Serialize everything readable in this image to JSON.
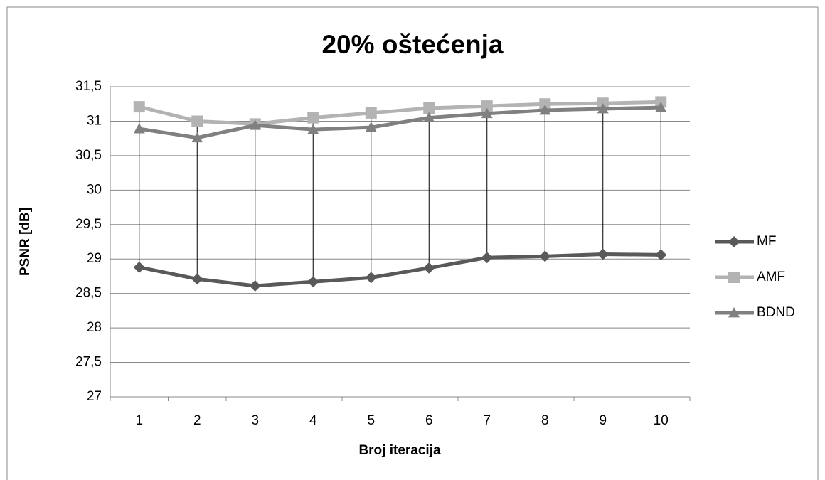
{
  "chart_data": {
    "type": "line",
    "title": "20% oštećenja",
    "x_label": "Broj iteracija",
    "y_label": "PSNR [dB]",
    "categories": [
      1,
      2,
      3,
      4,
      5,
      6,
      7,
      8,
      9,
      10
    ],
    "series": [
      {
        "name": "MF",
        "color": "#595959",
        "marker": "diamond",
        "values": [
          28.88,
          28.71,
          28.61,
          28.67,
          28.73,
          28.87,
          29.02,
          29.04,
          29.07,
          29.06
        ]
      },
      {
        "name": "AMF",
        "color": "#b3b3b3",
        "marker": "square",
        "values": [
          31.21,
          31.0,
          30.96,
          31.05,
          31.12,
          31.19,
          31.22,
          31.25,
          31.26,
          31.28
        ]
      },
      {
        "name": "BDND",
        "color": "#808080",
        "marker": "triangle",
        "values": [
          30.89,
          30.76,
          30.94,
          30.88,
          30.91,
          31.05,
          31.11,
          31.16,
          31.18,
          31.2
        ]
      }
    ],
    "ylim": [
      27,
      31.5
    ],
    "yticks": [
      27,
      {
        "value": 27.5,
        "label": "27,5"
      },
      28,
      {
        "value": 28.5,
        "label": "28,5"
      },
      29,
      {
        "value": 29.5,
        "label": "29,5"
      },
      30,
      {
        "value": 30.5,
        "label": "30,5"
      },
      31,
      {
        "value": 31.5,
        "label": "31,5"
      }
    ],
    "grid": true,
    "hilo_lines": true,
    "legend": "right"
  }
}
